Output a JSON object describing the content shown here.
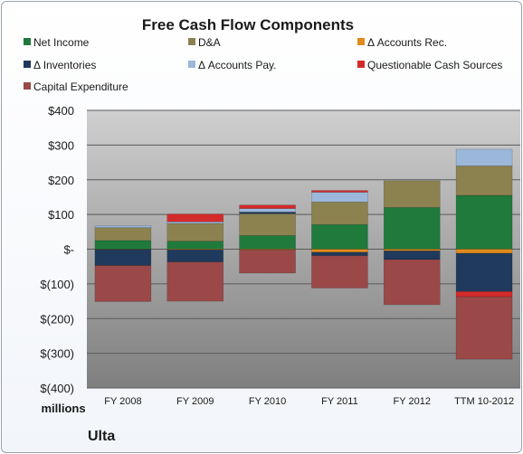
{
  "chart_data": {
    "type": "bar",
    "stacked": true,
    "title": "Free Cash Flow Components",
    "unit_label": "millions",
    "company": "Ulta",
    "categories": [
      "FY 2008",
      "FY 2009",
      "FY 2010",
      "FY 2011",
      "FY 2012",
      "TTM 10-2012"
    ],
    "ylim": [
      -400,
      400
    ],
    "yticks": [
      {
        "value": 400,
        "label": "$400"
      },
      {
        "value": 300,
        "label": "$300"
      },
      {
        "value": 200,
        "label": "$200"
      },
      {
        "value": 100,
        "label": "$100"
      },
      {
        "value": 0,
        "label": "$-"
      },
      {
        "value": -100,
        "label": "$(100)"
      },
      {
        "value": -200,
        "label": "$(200)"
      },
      {
        "value": -300,
        "label": "$(300)"
      },
      {
        "value": -400,
        "label": "$(400)"
      }
    ],
    "grid": true,
    "legend_position": "top",
    "series": [
      {
        "name": "Net Income",
        "color": "#1f7a3c",
        "values": [
          25,
          23,
          39,
          71,
          120,
          155
        ]
      },
      {
        "name": "D&A",
        "color": "#8c8250",
        "values": [
          37,
          51,
          63,
          65,
          77,
          85
        ]
      },
      {
        "name": "Δ Accounts Rec.",
        "color": "#e08a1e",
        "values": [
          -1,
          -2,
          -2,
          -9,
          -5,
          -12
        ]
      },
      {
        "name": "Δ Inventories",
        "color": "#1f3a5c",
        "values": [
          -46,
          -35,
          5,
          -10,
          -25,
          -110
        ]
      },
      {
        "name": "Δ Accounts Pay.",
        "color": "#9bb7d9",
        "values": [
          6,
          5,
          10,
          28,
          0,
          48
        ]
      },
      {
        "name": "Questionable Cash Sources",
        "color": "#d42a2a",
        "values": [
          0,
          22,
          10,
          5,
          0,
          -15
        ]
      },
      {
        "name": "Capital Expenditure",
        "color": "#9b4848",
        "values": [
          -104,
          -113,
          -67,
          -93,
          -130,
          -180
        ]
      }
    ]
  }
}
